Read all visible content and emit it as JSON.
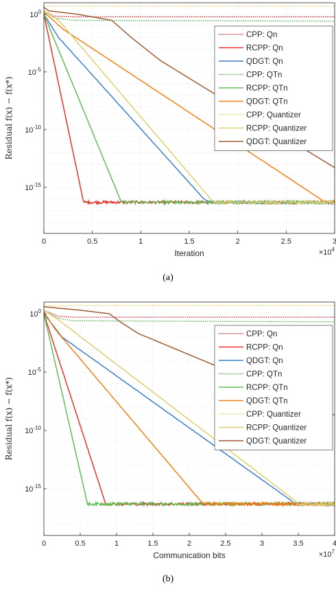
{
  "chart_data": [
    {
      "type": "line",
      "caption": "(a)",
      "xlabel": "Iteration",
      "x_multiplier": "×10^4",
      "ylabel": "Residual f(x) − f(x*)",
      "yscale": "log",
      "xlim": [
        0,
        30000
      ],
      "ylim": [
        1e-19,
        10
      ],
      "xticks": [
        0,
        5000,
        10000,
        15000,
        20000,
        25000,
        30000
      ],
      "xtick_labels": [
        "0",
        "0.5",
        "1",
        "1.5",
        "2",
        "2.5",
        "3"
      ],
      "yticks": [
        1,
        1e-05,
        1e-10,
        1e-15
      ],
      "ytick_labels": [
        "10^0",
        "10^-5",
        "10^-10",
        "10^-15"
      ],
      "grid": true,
      "legend_position": "top-right",
      "series": [
        {
          "name": "CPP: Qn",
          "color": "#d62728",
          "style": "dotted",
          "noise": 0.02,
          "points": [
            [
              0,
              2.0
            ],
            [
              1000,
              0.7
            ],
            [
              3000,
              0.6
            ],
            [
              30000,
              0.6
            ]
          ]
        },
        {
          "name": "RCPP: Qn",
          "color": "#e8312a",
          "style": "solid",
          "noise": 0.25,
          "points": [
            [
              0,
              1.0
            ],
            [
              4100,
              5e-17
            ],
            [
              30000,
              5e-17
            ]
          ]
        },
        {
          "name": "QDGT: Qn",
          "color": "#3a7dc9",
          "style": "solid",
          "noise": 0.25,
          "points": [
            [
              0,
              1.0
            ],
            [
              1500,
              0.01
            ],
            [
              16500,
              1e-16
            ],
            [
              17000,
              5e-17
            ],
            [
              30000,
              5e-17
            ]
          ]
        },
        {
          "name": "CPP: QTn",
          "color": "#4fae4a",
          "style": "dotted",
          "noise": 0.02,
          "points": [
            [
              0,
              2.0
            ],
            [
              1000,
              0.5
            ],
            [
              3000,
              0.3
            ],
            [
              30000,
              0.25
            ]
          ]
        },
        {
          "name": "RCPP: QTn",
          "color": "#5cbf53",
          "style": "solid",
          "noise": 0.25,
          "points": [
            [
              0,
              1.0
            ],
            [
              8000,
              5e-17
            ],
            [
              30000,
              5e-17
            ]
          ]
        },
        {
          "name": "QDGT: QTn",
          "color": "#f07f12",
          "style": "solid",
          "noise": 0.25,
          "points": [
            [
              0,
              1.5
            ],
            [
              2000,
              0.05
            ],
            [
              28500,
              1e-16
            ],
            [
              29000,
              5e-17
            ],
            [
              30000,
              5e-17
            ]
          ]
        },
        {
          "name": "CPP: Quantizer",
          "color": "#edd36a",
          "style": "dotted",
          "noise": 0.0,
          "points": [
            [
              0,
              5.0
            ],
            [
              30000,
              5.0
            ]
          ]
        },
        {
          "name": "RCPP: Quantizer",
          "color": "#dccf6e",
          "style": "solid",
          "noise": 0.3,
          "points": [
            [
              0,
              2.0
            ],
            [
              1500,
              0.3
            ],
            [
              2000,
              0.1
            ],
            [
              17200,
              1e-16
            ],
            [
              17500,
              5e-17
            ],
            [
              30000,
              5e-17
            ]
          ]
        },
        {
          "name": "QDGT: Quantizer",
          "color": "#9b5a33",
          "style": "solid",
          "noise": 0.0,
          "points": [
            [
              0,
              4.0
            ],
            [
              500,
              2.0
            ],
            [
              3500,
              1.0
            ],
            [
              7000,
              0.3
            ],
            [
              9000,
              0.01
            ],
            [
              12000,
              0.0001
            ],
            [
              30000,
              5e-14
            ]
          ]
        }
      ]
    },
    {
      "type": "line",
      "caption": "(b)",
      "xlabel": "Communication bits",
      "x_multiplier": "×10^7",
      "ylabel": "Residual f(x) − f(x*)",
      "yscale": "log",
      "xlim": [
        0,
        40000000
      ],
      "ylim": [
        1e-19,
        10
      ],
      "xticks": [
        0,
        5000000,
        10000000,
        15000000,
        20000000,
        25000000,
        30000000,
        35000000,
        40000000
      ],
      "xtick_labels": [
        "0",
        "0.5",
        "1",
        "1.5",
        "2",
        "2.5",
        "3",
        "3.5",
        "4"
      ],
      "yticks": [
        1,
        1e-05,
        1e-10,
        1e-15
      ],
      "ytick_labels": [
        "10^0",
        "10^-5",
        "10^-10",
        "10^-15"
      ],
      "grid": true,
      "legend_position": "top-right",
      "series": [
        {
          "name": "CPP: Qn",
          "color": "#d62728",
          "style": "dotted",
          "noise": 0.02,
          "points": [
            [
              0,
              2.0
            ],
            [
              2000000,
              0.6
            ],
            [
              4000000,
              0.5
            ],
            [
              40000000,
              0.5
            ]
          ]
        },
        {
          "name": "RCPP: Qn",
          "color": "#e8312a",
          "style": "solid",
          "noise": 0.25,
          "points": [
            [
              0,
              1.0
            ],
            [
              8500000,
              5e-17
            ],
            [
              40000000,
              5e-17
            ]
          ]
        },
        {
          "name": "QDGT: Qn",
          "color": "#3a7dc9",
          "style": "solid",
          "noise": 0.25,
          "points": [
            [
              0,
              1.0
            ],
            [
              2500000,
              0.01
            ],
            [
              34000000,
              1e-16
            ],
            [
              34500000,
              5e-17
            ],
            [
              40000000,
              5e-17
            ]
          ]
        },
        {
          "name": "CPP: QTn",
          "color": "#4fae4a",
          "style": "dotted",
          "noise": 0.02,
          "points": [
            [
              0,
              2.0
            ],
            [
              2000000,
              0.4
            ],
            [
              4000000,
              0.25
            ],
            [
              40000000,
              0.2
            ]
          ]
        },
        {
          "name": "RCPP: QTn",
          "color": "#5cbf53",
          "style": "solid",
          "noise": 0.25,
          "points": [
            [
              0,
              1.0
            ],
            [
              6000000,
              5e-17
            ],
            [
              40000000,
              5e-17
            ]
          ]
        },
        {
          "name": "QDGT: QTn",
          "color": "#f07f12",
          "style": "solid",
          "noise": 0.25,
          "points": [
            [
              0,
              1.5
            ],
            [
              1500000,
              0.05
            ],
            [
              21500000,
              1e-16
            ],
            [
              22000000,
              5e-17
            ],
            [
              40000000,
              5e-17
            ]
          ]
        },
        {
          "name": "CPP: Quantizer",
          "color": "#edd36a",
          "style": "dotted",
          "noise": 0.0,
          "points": [
            [
              0,
              5.0
            ],
            [
              40000000,
              5.0
            ]
          ]
        },
        {
          "name": "RCPP: Quantizer",
          "color": "#dccf6e",
          "style": "solid",
          "noise": 0.3,
          "points": [
            [
              0,
              2.0
            ],
            [
              2000000,
              0.3
            ],
            [
              3000000,
              0.1
            ],
            [
              34500000,
              1e-16
            ],
            [
              35000000,
              5e-17
            ],
            [
              40000000,
              5e-17
            ]
          ]
        },
        {
          "name": "QDGT: Quantizer",
          "color": "#9b5a33",
          "style": "solid",
          "noise": 0.0,
          "points": [
            [
              0,
              4.0
            ],
            [
              2000000,
              3.0
            ],
            [
              5000000,
              2.0
            ],
            [
              9000000,
              1.0
            ],
            [
              10500000,
              0.2
            ],
            [
              13000000,
              0.02
            ],
            [
              40000000,
              2e-09
            ]
          ]
        }
      ]
    }
  ]
}
